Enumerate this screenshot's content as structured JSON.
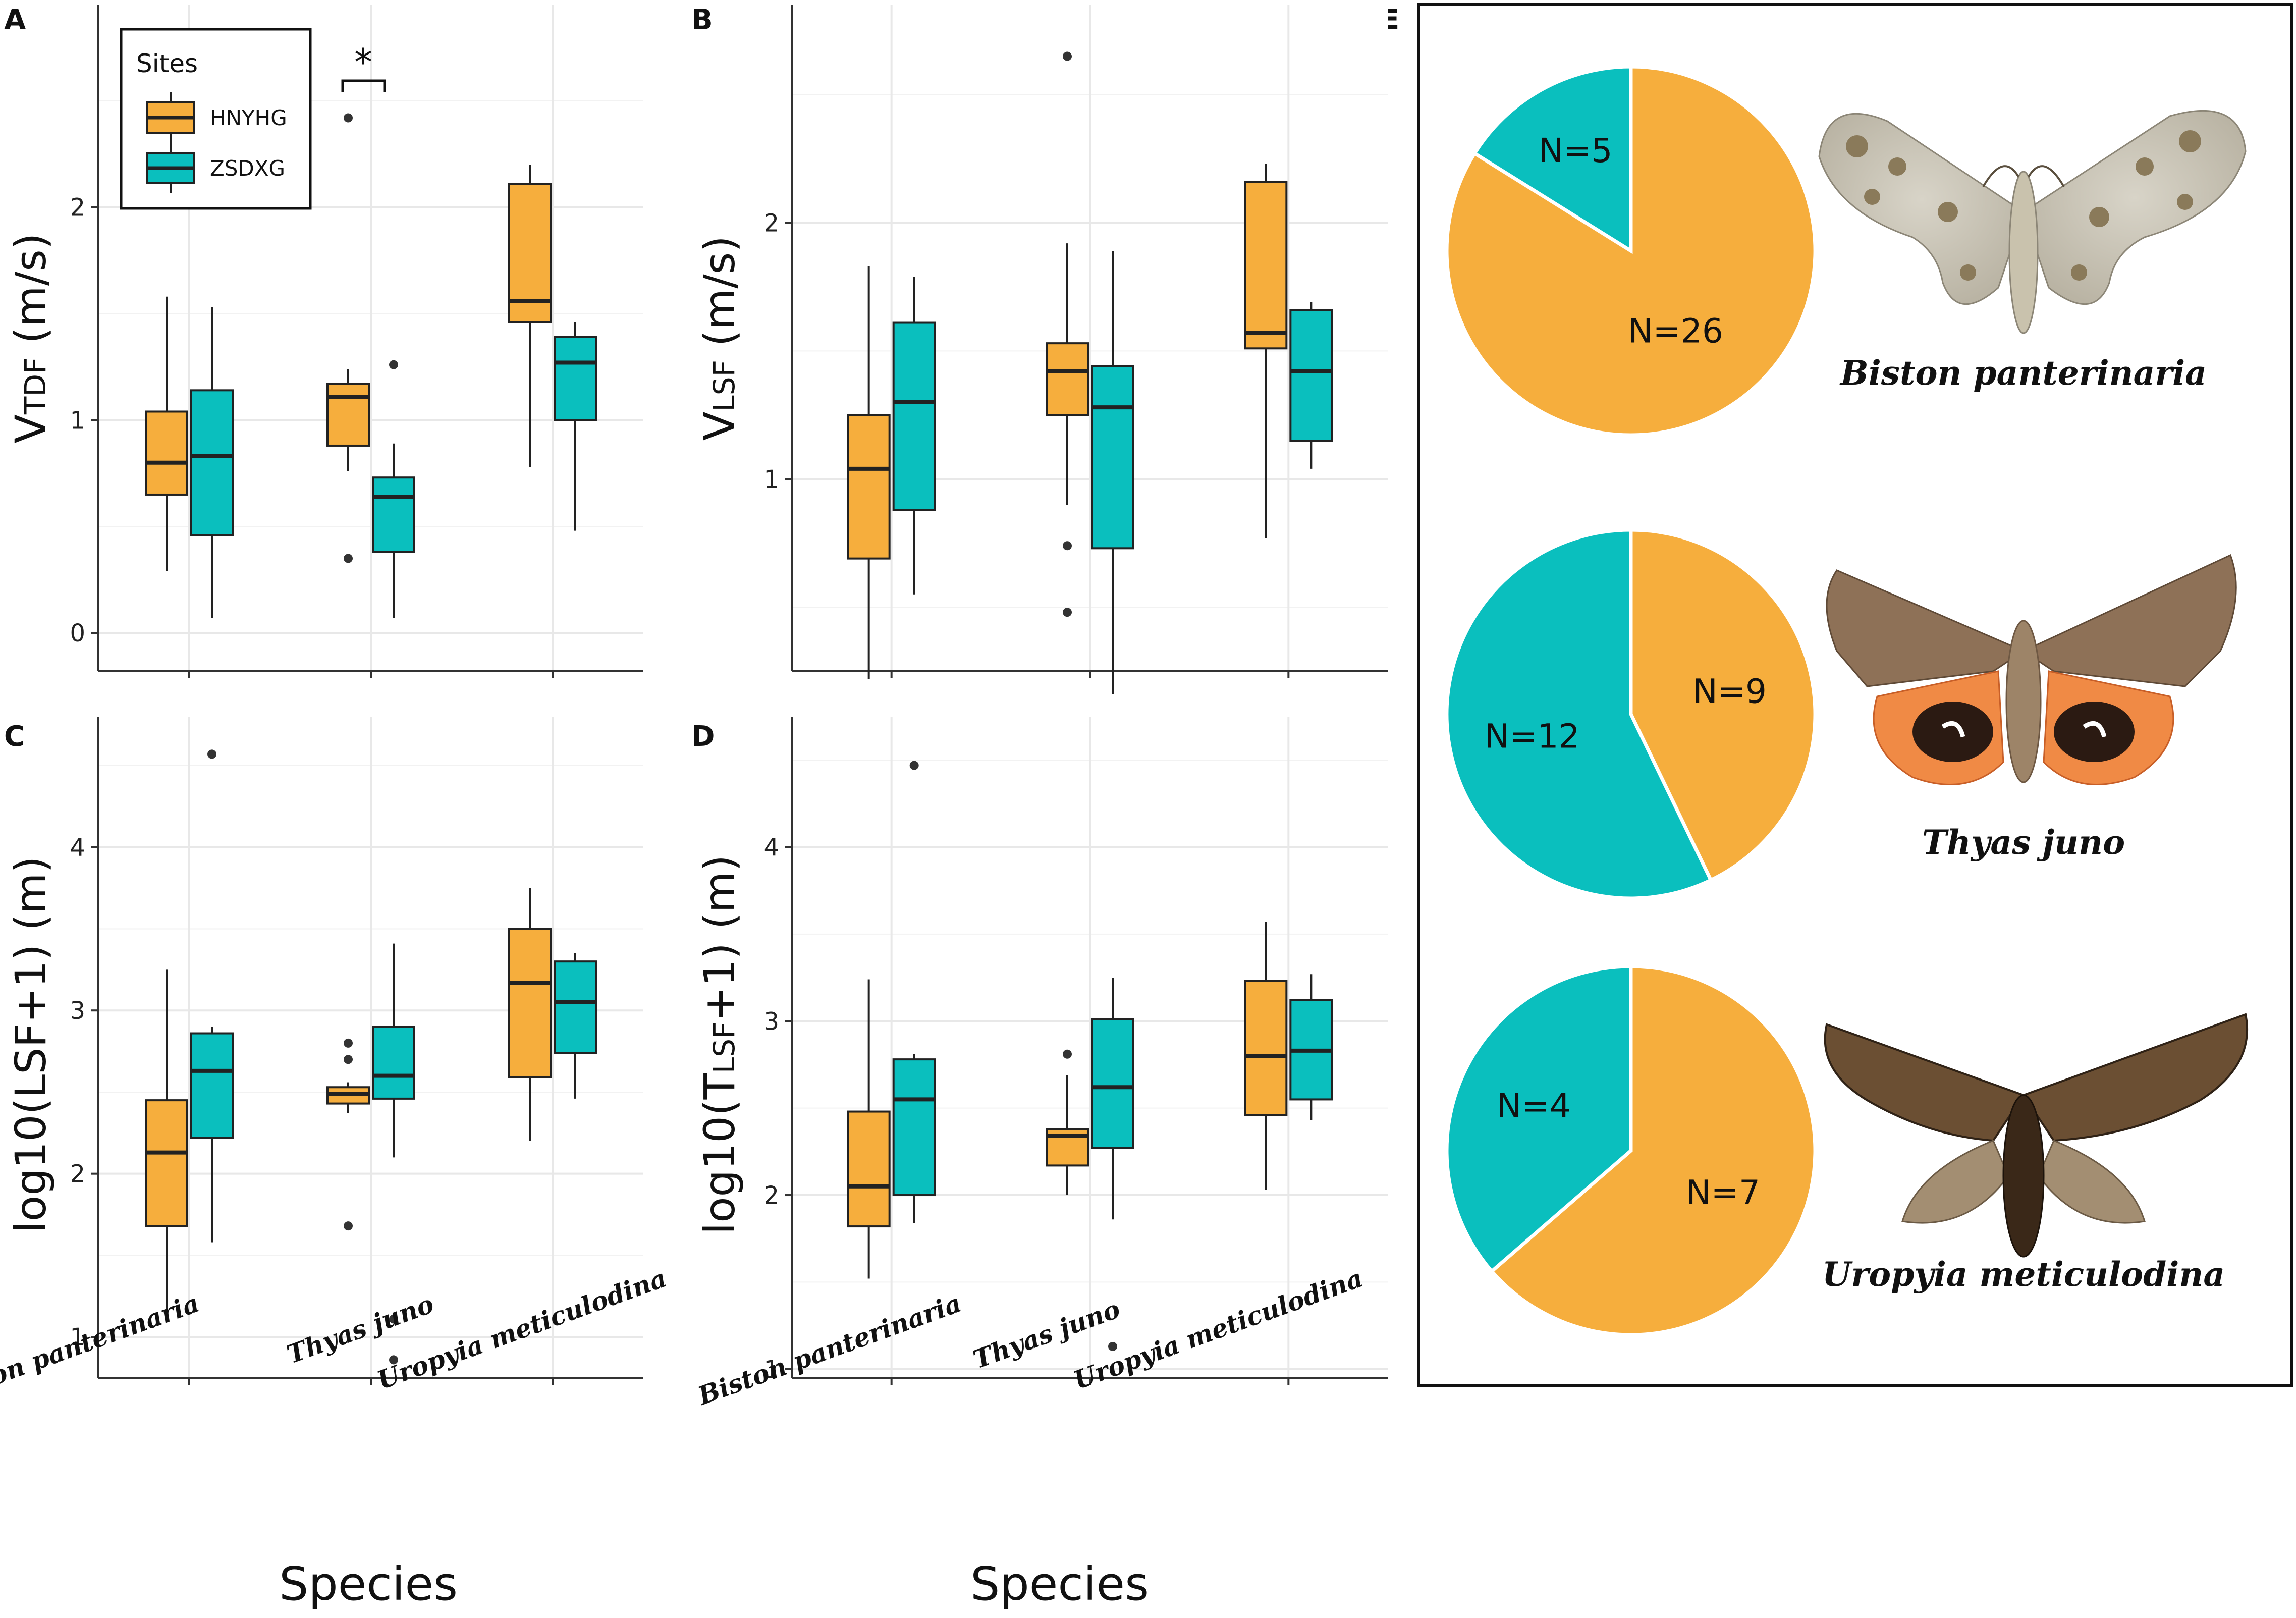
{
  "colors": {
    "hnyhg": "#F6AE3D",
    "zsdxg": "#0ABFBE",
    "grid": "#E8E8E8",
    "line": "#222222"
  },
  "x_axis_title": "Species",
  "species": [
    "Biston panterinaria",
    "Thyas juno",
    "Uropyia meticulodina"
  ],
  "legend": {
    "title": "Sites",
    "items": [
      "HNYHG",
      "ZSDXG"
    ]
  },
  "chart_data": [
    {
      "panel": "A",
      "type": "box",
      "ylabel_main": "V",
      "ylabel_sub": "TDF",
      "ylabel_tail": " (m/s)",
      "ylim": [
        -0.18,
        2.95
      ],
      "yticks": [
        0,
        1,
        2
      ],
      "ytick_labels": [
        "0",
        "1",
        "2"
      ],
      "significance": "*",
      "series": [
        {
          "name": "HNYHG",
          "boxes": [
            {
              "q1": 0.65,
              "median": 0.8,
              "q3": 1.04,
              "wlo": 0.29,
              "whi": 1.58,
              "outliers": []
            },
            {
              "q1": 0.88,
              "median": 1.11,
              "q3": 1.17,
              "wlo": 0.76,
              "whi": 1.24,
              "outliers": [
                2.42,
                0.35
              ]
            },
            {
              "q1": 1.46,
              "median": 1.56,
              "q3": 2.11,
              "wlo": 0.78,
              "whi": 2.2,
              "outliers": []
            }
          ]
        },
        {
          "name": "ZSDXG",
          "boxes": [
            {
              "q1": 0.46,
              "median": 0.83,
              "q3": 1.14,
              "wlo": 0.07,
              "whi": 1.53,
              "outliers": []
            },
            {
              "q1": 0.38,
              "median": 0.64,
              "q3": 0.73,
              "wlo": 0.07,
              "whi": 0.89,
              "outliers": [
                1.26
              ]
            },
            {
              "q1": 1.0,
              "median": 1.27,
              "q3": 1.39,
              "wlo": 0.48,
              "whi": 1.46,
              "outliers": []
            }
          ]
        }
      ]
    },
    {
      "panel": "B",
      "type": "box",
      "ylabel_main": "V",
      "ylabel_sub": "LSF",
      "ylabel_tail": " (m/s)",
      "ylim": [
        0.25,
        2.85
      ],
      "yticks": [
        1,
        2
      ],
      "ytick_labels": [
        "1",
        "2"
      ],
      "series": [
        {
          "name": "HNYHG",
          "boxes": [
            {
              "q1": 0.69,
              "median": 1.04,
              "q3": 1.25,
              "wlo": 0.22,
              "whi": 1.83,
              "outliers": []
            },
            {
              "q1": 1.25,
              "median": 1.42,
              "q3": 1.53,
              "wlo": 0.9,
              "whi": 1.92,
              "outliers": [
                2.65,
                0.74,
                0.48
              ]
            },
            {
              "q1": 1.51,
              "median": 1.57,
              "q3": 2.16,
              "wlo": 0.77,
              "whi": 2.23,
              "outliers": []
            }
          ]
        },
        {
          "name": "ZSDXG",
          "boxes": [
            {
              "q1": 0.88,
              "median": 1.3,
              "q3": 1.61,
              "wlo": 0.55,
              "whi": 1.79,
              "outliers": []
            },
            {
              "q1": 0.73,
              "median": 1.28,
              "q3": 1.44,
              "wlo": 0.16,
              "whi": 1.89,
              "outliers": []
            },
            {
              "q1": 1.15,
              "median": 1.42,
              "q3": 1.66,
              "wlo": 1.04,
              "whi": 1.69,
              "outliers": []
            }
          ]
        }
      ]
    },
    {
      "panel": "C",
      "type": "box",
      "ylabel_main": "log10(LSF+1) (m)",
      "ylabel_sub": "",
      "ylabel_tail": "",
      "ylim": [
        0.75,
        4.8
      ],
      "yticks": [
        1,
        2,
        3,
        4
      ],
      "ytick_labels": [
        "1",
        "2",
        "3",
        "4"
      ],
      "series": [
        {
          "name": "HNYHG",
          "boxes": [
            {
              "q1": 1.68,
              "median": 2.13,
              "q3": 2.45,
              "wlo": 1.15,
              "whi": 3.25,
              "outliers": []
            },
            {
              "q1": 2.43,
              "median": 2.49,
              "q3": 2.53,
              "wlo": 2.37,
              "whi": 2.56,
              "outliers": [
                2.8,
                2.7,
                1.68
              ]
            },
            {
              "q1": 2.59,
              "median": 3.17,
              "q3": 3.5,
              "wlo": 2.2,
              "whi": 3.75,
              "outliers": []
            }
          ]
        },
        {
          "name": "ZSDXG",
          "boxes": [
            {
              "q1": 2.22,
              "median": 2.63,
              "q3": 2.86,
              "wlo": 1.58,
              "whi": 2.9,
              "outliers": [
                4.57
              ]
            },
            {
              "q1": 2.46,
              "median": 2.6,
              "q3": 2.9,
              "wlo": 2.1,
              "whi": 3.41,
              "outliers": [
                1.11,
                0.86
              ]
            },
            {
              "q1": 2.74,
              "median": 3.05,
              "q3": 3.3,
              "wlo": 2.46,
              "whi": 3.35,
              "outliers": []
            }
          ]
        }
      ]
    },
    {
      "panel": "D",
      "type": "box",
      "ylabel_main": "log10(T",
      "ylabel_sub": "LSF",
      "ylabel_tail": "+1) (m)",
      "ylim": [
        0.95,
        4.75
      ],
      "yticks": [
        1,
        2,
        3,
        4
      ],
      "ytick_labels": [
        "1",
        "2",
        "3",
        "4"
      ],
      "series": [
        {
          "name": "HNYHG",
          "boxes": [
            {
              "q1": 1.82,
              "median": 2.05,
              "q3": 2.48,
              "wlo": 1.52,
              "whi": 3.24,
              "outliers": []
            },
            {
              "q1": 2.17,
              "median": 2.34,
              "q3": 2.38,
              "wlo": 2.0,
              "whi": 2.69,
              "outliers": [
                2.81
              ]
            },
            {
              "q1": 2.46,
              "median": 2.8,
              "q3": 3.23,
              "wlo": 2.03,
              "whi": 3.57,
              "outliers": []
            }
          ]
        },
        {
          "name": "ZSDXG",
          "boxes": [
            {
              "q1": 2.0,
              "median": 2.55,
              "q3": 2.78,
              "wlo": 1.84,
              "whi": 2.81,
              "outliers": [
                4.47
              ]
            },
            {
              "q1": 2.27,
              "median": 2.62,
              "q3": 3.01,
              "wlo": 1.86,
              "whi": 3.25,
              "outliers": [
                1.13
              ]
            },
            {
              "q1": 2.55,
              "median": 2.83,
              "q3": 3.12,
              "wlo": 2.43,
              "whi": 3.27,
              "outliers": []
            }
          ]
        }
      ]
    },
    {
      "panel": "E",
      "type": "pie",
      "pies": [
        {
          "species": "Biston panterinaria",
          "slices": [
            {
              "site": "HNYHG",
              "value": 26,
              "label": "N=26"
            },
            {
              "site": "ZSDXG",
              "value": 5,
              "label": "N=5"
            }
          ]
        },
        {
          "species": "Thyas juno",
          "slices": [
            {
              "site": "HNYHG",
              "value": 9,
              "label": "N=9"
            },
            {
              "site": "ZSDXG",
              "value": 12,
              "label": "N=12"
            }
          ]
        },
        {
          "species": "Uropyia meticulodina",
          "slices": [
            {
              "site": "HNYHG",
              "value": 7,
              "label": "N=7"
            },
            {
              "site": "ZSDXG",
              "value": 4,
              "label": "N=4"
            }
          ]
        }
      ]
    }
  ]
}
